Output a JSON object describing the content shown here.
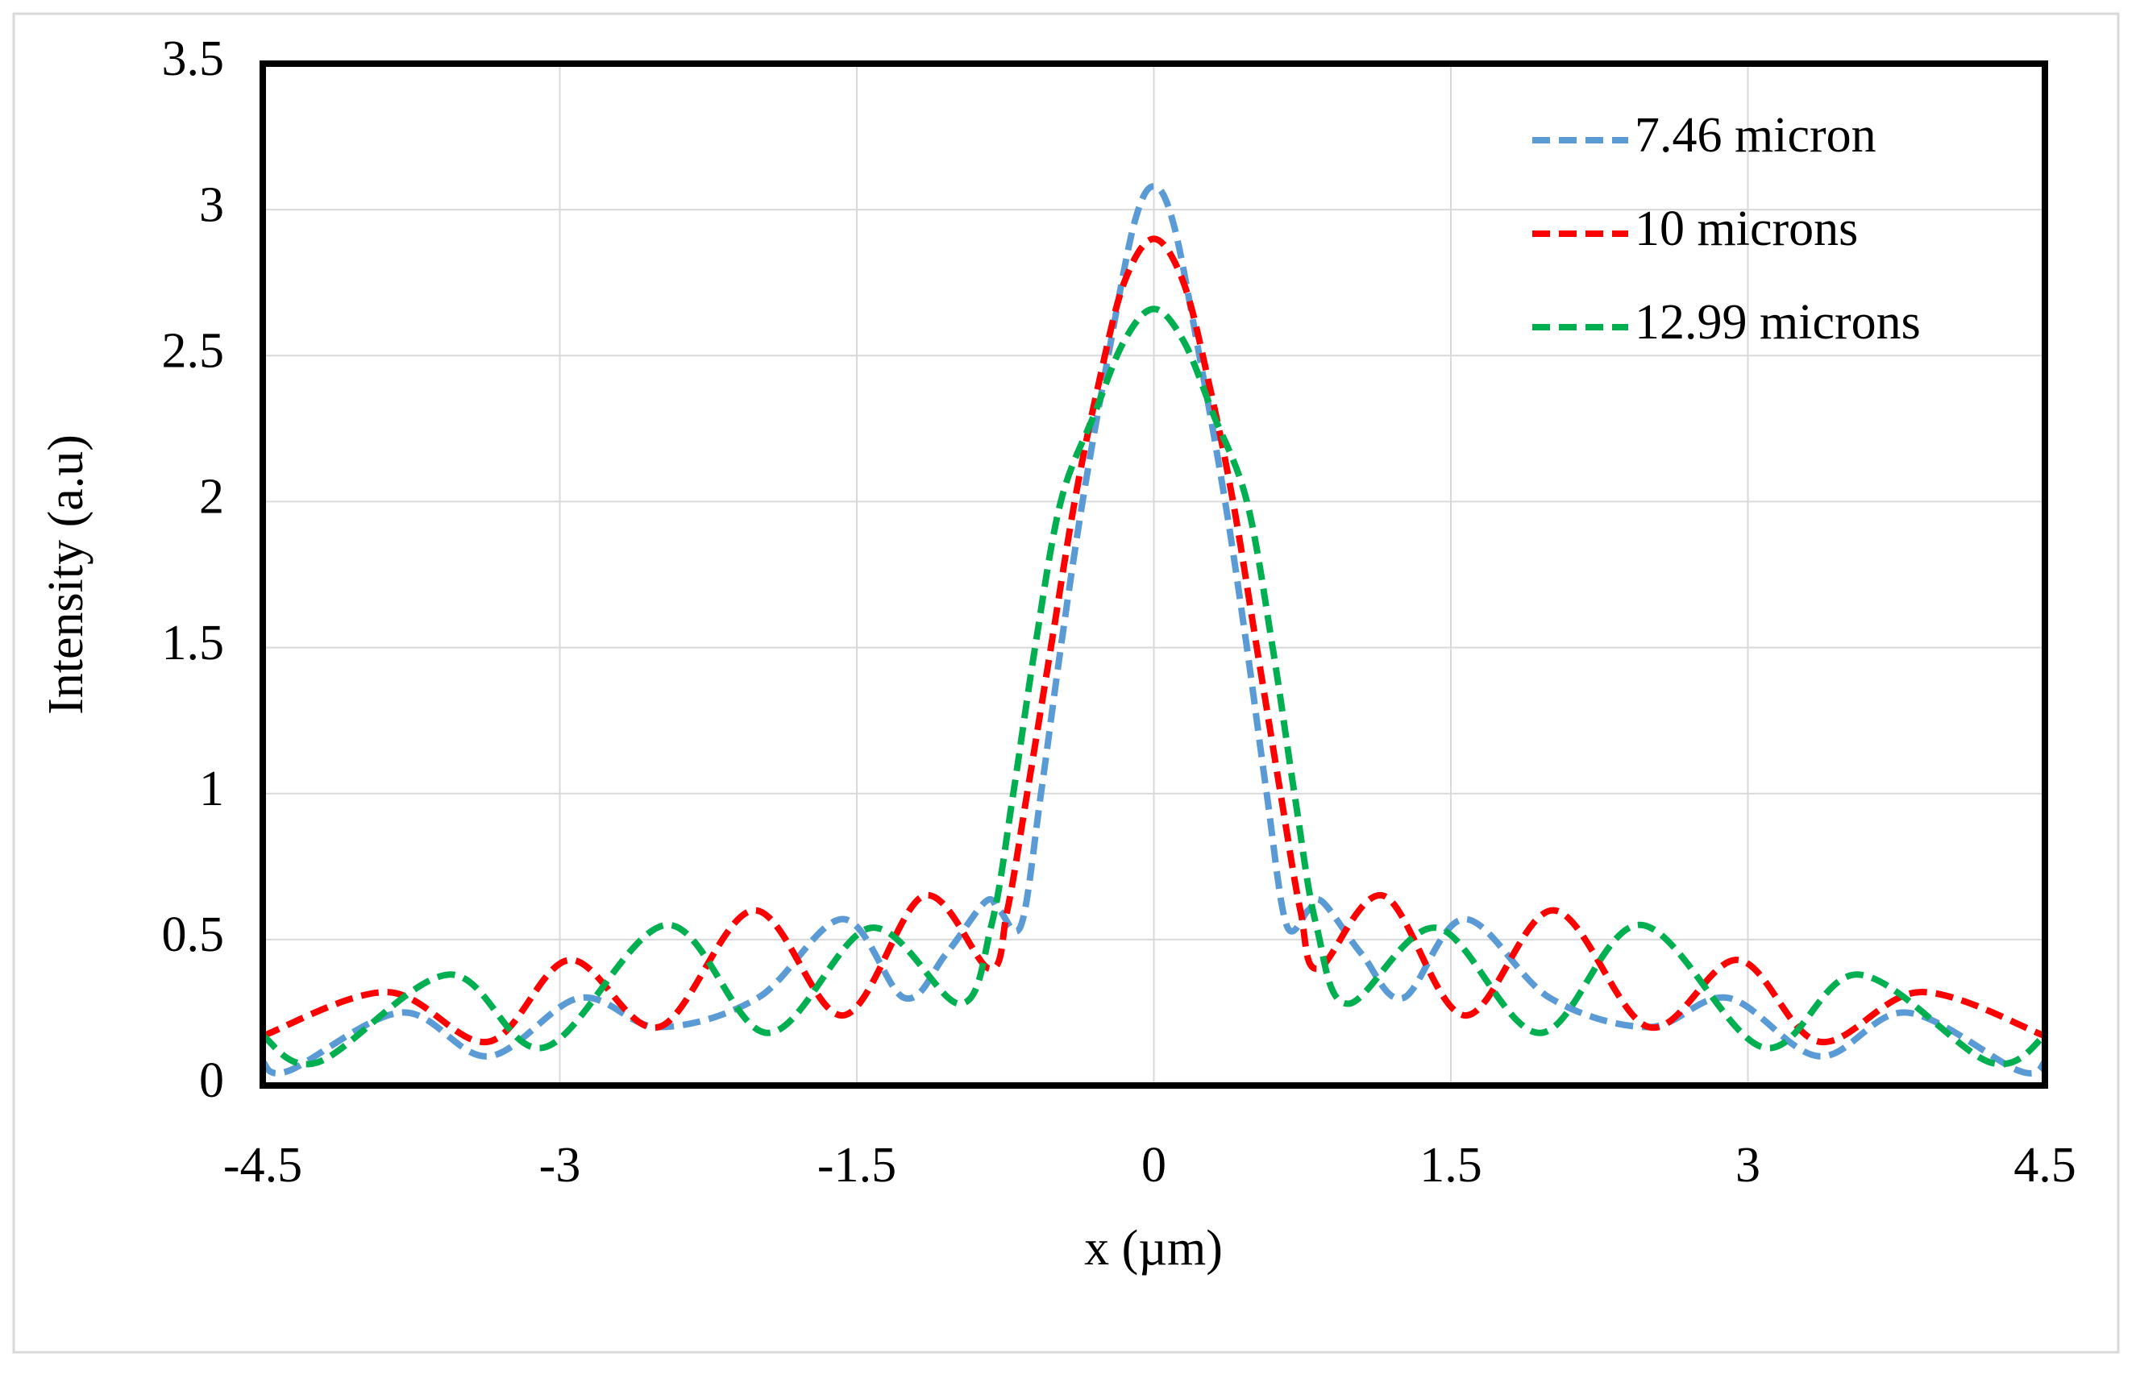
{
  "chart_data": {
    "type": "line",
    "xlabel": "x (µm)",
    "ylabel": "Intensity (a.u)",
    "xlim": [
      -4.5,
      4.5
    ],
    "xticks": [
      -4.5,
      -3,
      -1.5,
      0,
      1.5,
      3,
      4.5
    ],
    "ylim": [
      0,
      3.5
    ],
    "yticks": [
      0,
      0.5,
      1,
      1.5,
      2,
      2.5,
      3,
      3.5
    ],
    "grid": true,
    "legend": "upper right",
    "line_style": "dashed",
    "series": [
      {
        "name": "7.46 micron",
        "color": "#5b9bd5",
        "x": [
          -4.5,
          -4.37,
          -3.8,
          -3.36,
          -2.9,
          -2.5,
          -2.0,
          -1.57,
          -1.26,
          -1.05,
          -0.85,
          -0.78,
          -0.67,
          -0.57,
          -0.47,
          -0.36,
          -0.23,
          -0.1,
          0,
          0.1,
          0.23,
          0.36,
          0.47,
          0.57,
          0.67,
          0.78,
          0.85,
          1.05,
          1.26,
          1.57,
          2.0,
          2.5,
          2.9,
          3.36,
          3.8,
          4.37,
          4.5
        ],
        "values": [
          0.08,
          0.05,
          0.25,
          0.1,
          0.3,
          0.2,
          0.3,
          0.57,
          0.3,
          0.45,
          0.63,
          0.6,
          0.55,
          1.0,
          1.5,
          2.0,
          2.5,
          2.95,
          3.08,
          2.95,
          2.5,
          2.0,
          1.5,
          1.0,
          0.55,
          0.6,
          0.63,
          0.45,
          0.3,
          0.57,
          0.3,
          0.2,
          0.3,
          0.1,
          0.25,
          0.05,
          0.08
        ]
      },
      {
        "name": "10 microns",
        "color": "#ff0000",
        "x": [
          -4.5,
          -3.87,
          -3.36,
          -2.95,
          -2.5,
          -2.02,
          -1.57,
          -1.16,
          -0.83,
          -0.74,
          -0.64,
          -0.52,
          -0.4,
          -0.28,
          -0.15,
          0,
          0.15,
          0.28,
          0.4,
          0.52,
          0.64,
          0.74,
          0.83,
          1.16,
          1.57,
          2.02,
          2.5,
          2.95,
          3.36,
          3.87,
          4.5
        ],
        "values": [
          0.17,
          0.32,
          0.15,
          0.43,
          0.2,
          0.6,
          0.24,
          0.65,
          0.4,
          0.6,
          1.0,
          1.5,
          2.0,
          2.4,
          2.75,
          2.9,
          2.75,
          2.4,
          2.0,
          1.5,
          1.0,
          0.6,
          0.4,
          0.65,
          0.24,
          0.6,
          0.2,
          0.43,
          0.15,
          0.32,
          0.17
        ]
      },
      {
        "name": "12.99 microns",
        "color": "#00b050",
        "x": [
          -4.5,
          -4.22,
          -3.56,
          -3.08,
          -2.46,
          -1.95,
          -1.43,
          -0.98,
          -0.82,
          -0.71,
          -0.6,
          -0.47,
          -0.3,
          -0.15,
          0,
          0.15,
          0.3,
          0.47,
          0.6,
          0.71,
          0.82,
          0.98,
          1.43,
          1.95,
          2.46,
          3.08,
          3.56,
          4.22,
          4.5
        ],
        "values": [
          0.17,
          0.08,
          0.38,
          0.13,
          0.55,
          0.18,
          0.54,
          0.28,
          0.55,
          1.0,
          1.5,
          2.0,
          2.3,
          2.55,
          2.66,
          2.55,
          2.3,
          2.0,
          1.5,
          1.0,
          0.55,
          0.28,
          0.54,
          0.18,
          0.55,
          0.13,
          0.38,
          0.08,
          0.17
        ]
      }
    ]
  }
}
